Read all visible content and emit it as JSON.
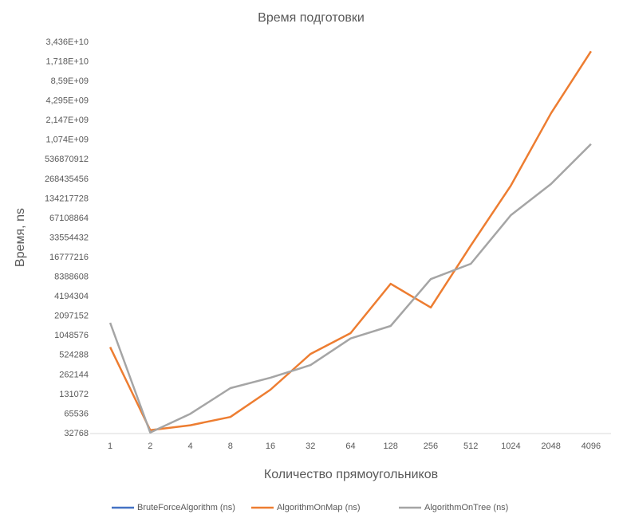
{
  "chart_data": {
    "type": "line",
    "title": "Время подготовки",
    "x_label": "Количество прямоугольников",
    "y_label": "Время, ns",
    "categories": [
      "1",
      "2",
      "4",
      "8",
      "16",
      "32",
      "64",
      "128",
      "256",
      "512",
      "1024",
      "2048",
      "4096"
    ],
    "series": [
      {
        "name": "BruteForceAlgorithm (ns)",
        "color": "#4472c4",
        "values": [
          null,
          null,
          null,
          null,
          null,
          null,
          null,
          null,
          null,
          null,
          null,
          null,
          null
        ]
      },
      {
        "name": "AlgorithmOnMap (ns)",
        "color": "#ed7d31",
        "values": [
          700000,
          37000,
          44000,
          59000,
          155000,
          550000,
          1150000,
          6600000,
          2850000,
          25600000,
          214000000,
          2770000000,
          25000000000
        ]
      },
      {
        "name": "AlgorithmOnTree (ns)",
        "color": "#a5a5a5",
        "values": [
          1660000,
          34000,
          66000,
          164000,
          237000,
          370000,
          950000,
          1480000,
          7800000,
          13400000,
          75000000,
          226000000,
          930000000
        ]
      }
    ],
    "log_scale_y": true,
    "grid": false,
    "legend": "bottom",
    "ylim": [
      32768,
      34359738368
    ],
    "yticks": [
      32768,
      65536,
      131072,
      262144,
      524288,
      1048576,
      2097152,
      4194304,
      8388608,
      16777216,
      33554432,
      67108864,
      134217728,
      268435456,
      536870912,
      {
        "value": 1073741824,
        "label": "1,074E+09"
      },
      {
        "value": 2147483648,
        "label": "2,147E+09"
      },
      {
        "value": 4294967296,
        "label": "4,295E+09"
      },
      {
        "value": 8589934592,
        "label": "8,59E+09"
      },
      {
        "value": 17179869184,
        "label": "1,718E+10"
      },
      {
        "value": 34359738368,
        "label": "3,436E+10"
      }
    ]
  }
}
